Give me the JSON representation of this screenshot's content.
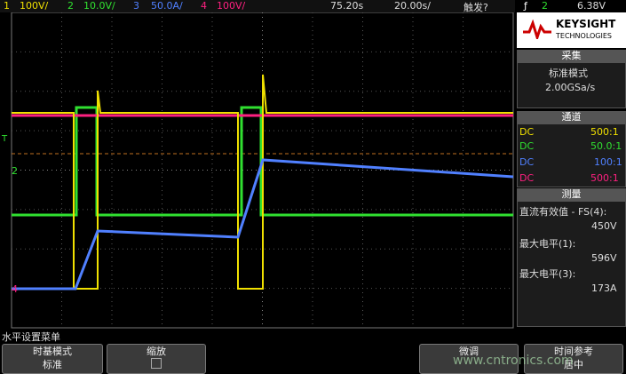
{
  "top_bar": {
    "ch1": {
      "num": "1",
      "scale": "100V/"
    },
    "ch2": {
      "num": "2",
      "scale": "10.0V/"
    },
    "ch3": {
      "num": "3",
      "scale": "50.0A/"
    },
    "ch4": {
      "num": "4",
      "scale": "100V/"
    },
    "delay": "75.20s",
    "timebase": "20.00s/",
    "trigger_status": "触发?",
    "trigger_source": "2",
    "trigger_level": "6.38V"
  },
  "screen_markers": {
    "trigger": "T",
    "ch2": "2",
    "ch4": "4"
  },
  "brand": {
    "name": "KEYSIGHT",
    "sub": "TECHNOLOGIES"
  },
  "acquisition": {
    "title": "采集",
    "mode": "标准模式",
    "rate": "2.00GSa/s"
  },
  "channels": {
    "title": "通道",
    "rows": [
      [
        "DC",
        "500:1"
      ],
      [
        "DC",
        "50.0:1"
      ],
      [
        "DC",
        "100:1"
      ],
      [
        "DC",
        "500:1"
      ]
    ]
  },
  "measurements": {
    "title": "测量",
    "items": [
      {
        "label": "直流有效值 - FS(4):",
        "value": "450V"
      },
      {
        "label": "最大电平(1):",
        "value": "596V"
      },
      {
        "label": "最大电平(3):",
        "value": "173A"
      }
    ]
  },
  "menu": {
    "title": "水平设置菜单",
    "keys": [
      {
        "label": "时基模式",
        "value": "标准"
      },
      {
        "label": "缩放"
      },
      {
        "label": "微调"
      },
      {
        "label": "时间参考",
        "value": "居中"
      }
    ]
  },
  "watermark": "www.cntronics.com"
}
